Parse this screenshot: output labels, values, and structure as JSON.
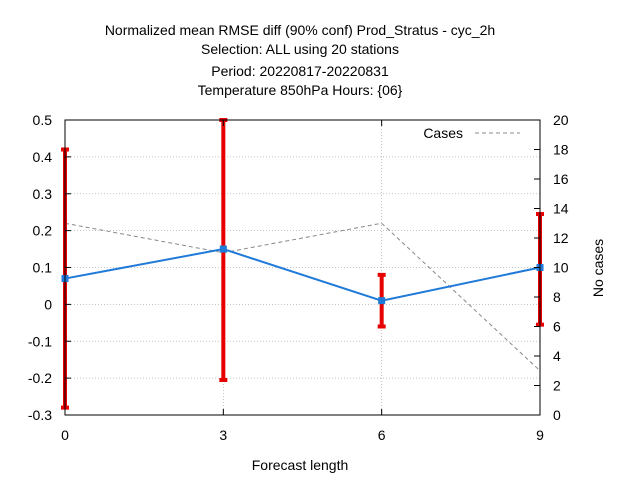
{
  "chart_data": {
    "type": "line",
    "title_lines": [
      "Normalized mean RMSE diff (90% conf) Prod_Stratus - cyc_2h",
      "Selection: ALL using    20 stations",
      "Period: 20220817-20220831",
      "Temperature 850hPa   Hours: {06}"
    ],
    "xlabel": "Forecast length",
    "y2label": "No cases",
    "x": [
      0,
      3,
      6,
      9
    ],
    "xlim": [
      0,
      9
    ],
    "ylim": [
      -0.3,
      0.5
    ],
    "y2lim": [
      0,
      20
    ],
    "x_ticks": [
      "0",
      "3",
      "6",
      "9"
    ],
    "x_tick_values": [
      0,
      3,
      6,
      9
    ],
    "y_ticks": [
      "0.5",
      "0.4",
      "0.3",
      "0.2",
      "0.1",
      "0",
      "-0.1",
      "-0.2",
      "-0.3"
    ],
    "y_tick_values": [
      0.5,
      0.4,
      0.3,
      0.2,
      0.1,
      0,
      -0.1,
      -0.2,
      -0.3
    ],
    "y2_ticks": [
      "20",
      "18",
      "16",
      "14",
      "12",
      "10",
      "8",
      "6",
      "4",
      "2",
      "0"
    ],
    "y2_tick_values": [
      20,
      18,
      16,
      14,
      12,
      10,
      8,
      6,
      4,
      2,
      0
    ],
    "grid": true,
    "series": [
      {
        "values": [
          0.07,
          0.15,
          0.01,
          0.1
        ],
        "error_low": [
          -0.28,
          -0.205,
          -0.06,
          -0.055
        ],
        "error_high": [
          0.42,
          0.5,
          0.08,
          0.245
        ],
        "color": "#1f7ad8",
        "error_color": "#e60000"
      },
      {
        "name": "Cases",
        "axis": "y2",
        "values": [
          13,
          11,
          13,
          3
        ],
        "color": "#888888",
        "style": "dashed"
      }
    ],
    "legend": {
      "position": "top-right",
      "entries": [
        "Cases"
      ]
    }
  }
}
